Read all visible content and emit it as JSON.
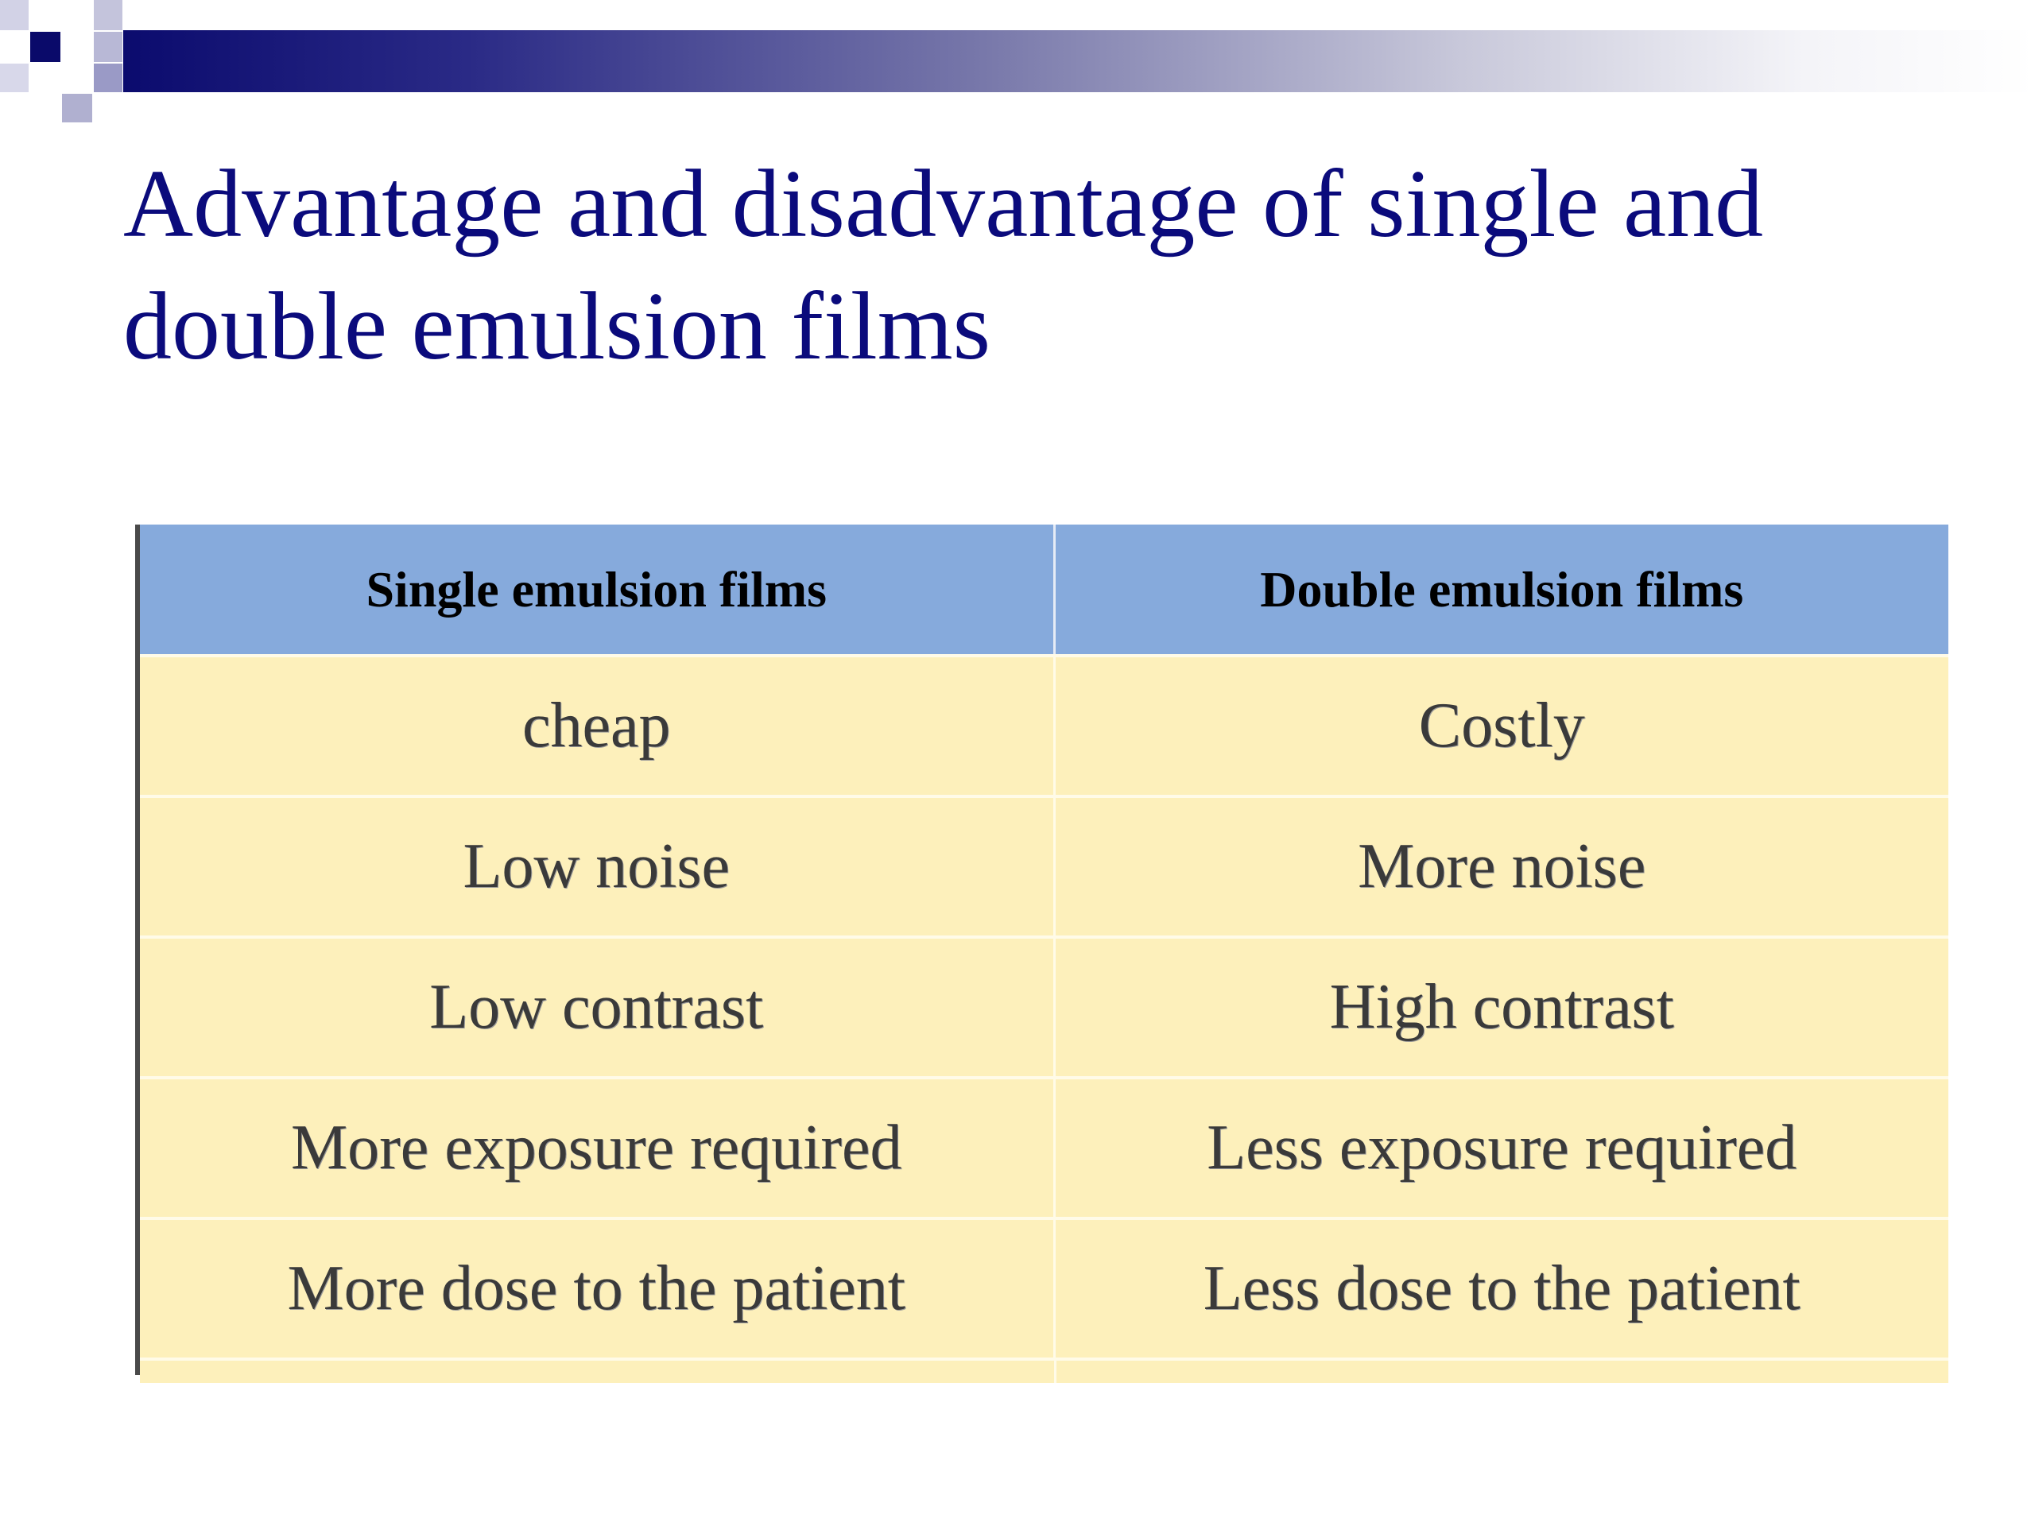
{
  "slide": {
    "title": "Advantage and disadvantage of single and double emulsion films"
  },
  "table": {
    "headers": [
      "Single emulsion films",
      "Double emulsion films"
    ],
    "rows": [
      [
        "cheap",
        "Costly"
      ],
      [
        "Low noise",
        "More noise"
      ],
      [
        "Low contrast",
        "High contrast"
      ],
      [
        "More exposure required",
        "Less exposure required"
      ],
      [
        "More dose to the patient",
        "Less dose to the patient"
      ]
    ]
  },
  "colors": {
    "title": "#0b0b7c",
    "header_bg": "#86aadc",
    "body_bg": "#fdf0bb",
    "band_start": "#0b0b6e"
  }
}
